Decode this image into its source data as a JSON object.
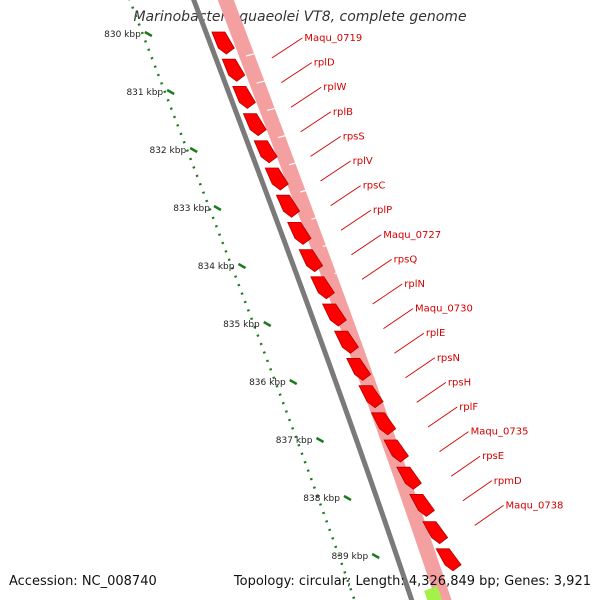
{
  "title": "Marinobacter aquaeolei VT8, complete genome",
  "footer": {
    "accession": "Accession: NC_008740",
    "topology": "Topology: circular; Length: 4,326,849 bp; Genes: 3,921"
  },
  "colors": {
    "gene": "#ff0000",
    "gene_dark": "#b50000",
    "track_light": "#f4a0a0",
    "backbone": "#7a7a7a",
    "ruler": "#1d7a1d",
    "label": "#d40000",
    "highlight": "#a6f04a"
  },
  "kbp_labels": [
    "830 kbp",
    "831 kbp",
    "832 kbp",
    "833 kbp",
    "834 kbp",
    "835 kbp",
    "836 kbp",
    "837 kbp",
    "838 kbp",
    "839 kbp"
  ],
  "gene_labels": [
    "Maqu_0719",
    "rplD",
    "rplW",
    "rplB",
    "rpsS",
    "rplV",
    "rpsC",
    "rplP",
    "Maqu_0727",
    "rpsQ",
    "rplN",
    "Maqu_0730",
    "rplE",
    "rpsN",
    "rpsH",
    "rplF",
    "Maqu_0735",
    "rpsE",
    "rpmD",
    "Maqu_0738"
  ]
}
